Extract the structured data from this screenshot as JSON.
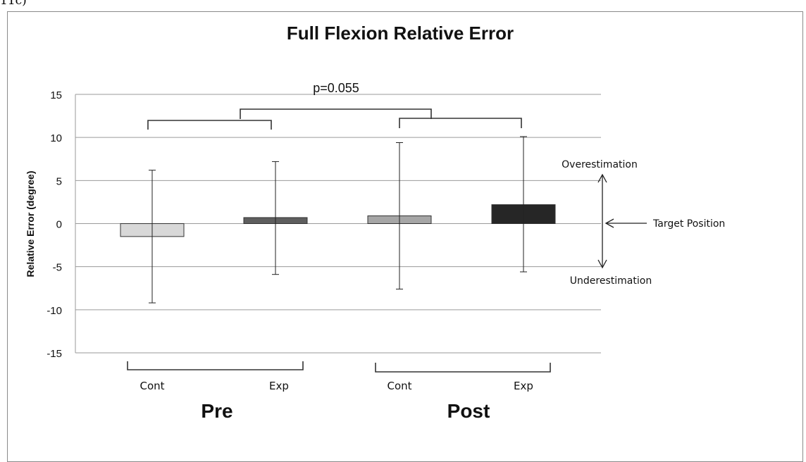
{
  "page_fragment": "11c)",
  "chart_data": {
    "type": "bar",
    "title": "Full Flexion Relative Error",
    "ylabel": "Relative Error (degree)",
    "ylim": [
      -15,
      15
    ],
    "yticks": [
      15,
      10,
      5,
      0,
      -5,
      -10,
      -15
    ],
    "grid": true,
    "categories": [
      "Cont",
      "Exp",
      "Cont",
      "Exp"
    ],
    "groups": [
      {
        "label": "Pre",
        "categories": [
          "Cont",
          "Exp"
        ]
      },
      {
        "label": "Post",
        "categories": [
          "Cont",
          "Exp"
        ]
      }
    ],
    "values": [
      -1.5,
      0.7,
      0.9,
      2.2
    ],
    "error_low": [
      -9.2,
      -5.9,
      -7.6,
      -5.6
    ],
    "error_high": [
      6.2,
      7.2,
      9.4,
      10.1
    ],
    "bar_colors": [
      "#d8d8d8",
      "#5e5e5e",
      "#a6a6a6",
      "#262626"
    ],
    "annotations": {
      "p_value": "p=0.055",
      "over": "Overestimation",
      "target": "Target Position",
      "under": "Underestimation"
    }
  }
}
